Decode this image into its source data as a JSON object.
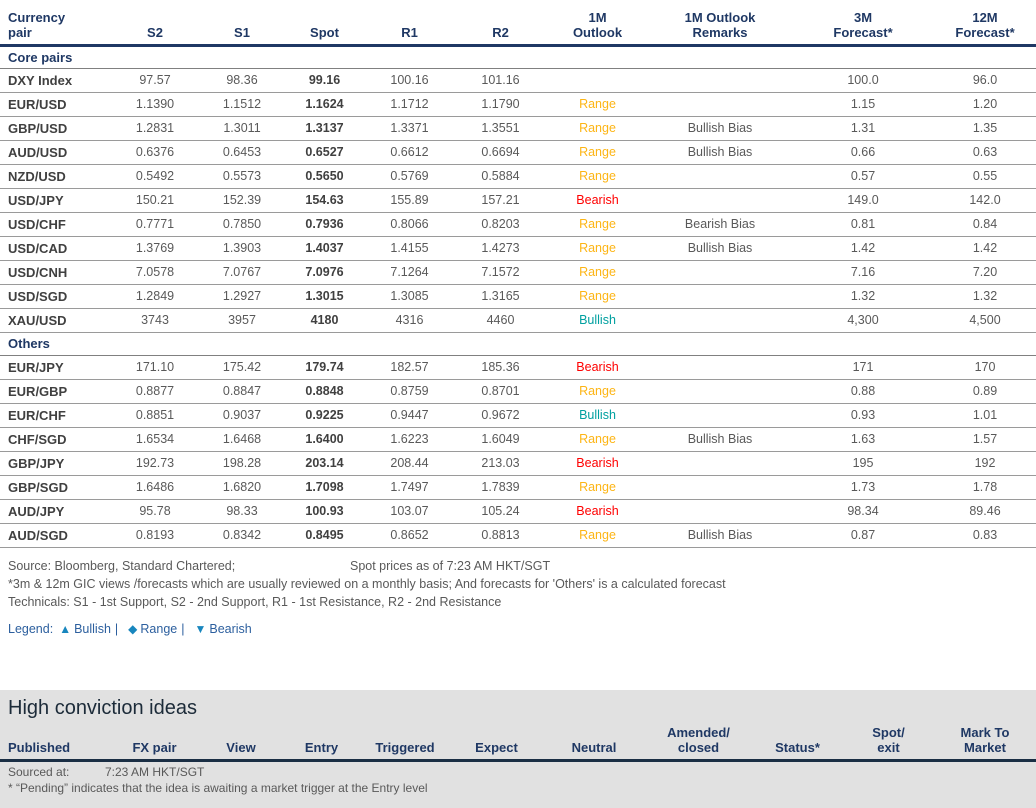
{
  "colors": {
    "range": "#FDB515",
    "bearish": "#FF0000",
    "bullish": "#00A0A0",
    "navy": "#1F3864",
    "section_bg": "#E1E1E1",
    "legend_text": "#2C5F9E",
    "legend_icon": "#1886BE"
  },
  "fx_table": {
    "columns": [
      "Currency\npair",
      "S2",
      "S1",
      "Spot",
      "R1",
      "R2",
      "1M\nOutlook",
      "1M Outlook\nRemarks",
      "3M\nForecast*",
      "12M\nForecast*"
    ],
    "sections": [
      {
        "label": "Core pairs",
        "rows": [
          {
            "pair": "DXY Index",
            "s2": "97.57",
            "s1": "98.36",
            "spot": "99.16",
            "r1": "100.16",
            "r2": "101.16",
            "outlook": "",
            "outlook_type": "",
            "remarks": "",
            "f3m": "100.0",
            "f12m": "96.0"
          },
          {
            "pair": "EUR/USD",
            "s2": "1.1390",
            "s1": "1.1512",
            "spot": "1.1624",
            "r1": "1.1712",
            "r2": "1.1790",
            "outlook": "Range",
            "outlook_type": "range",
            "remarks": "",
            "f3m": "1.15",
            "f12m": "1.20"
          },
          {
            "pair": "GBP/USD",
            "s2": "1.2831",
            "s1": "1.3011",
            "spot": "1.3137",
            "r1": "1.3371",
            "r2": "1.3551",
            "outlook": "Range",
            "outlook_type": "range",
            "remarks": "Bullish Bias",
            "f3m": "1.31",
            "f12m": "1.35"
          },
          {
            "pair": "AUD/USD",
            "s2": "0.6376",
            "s1": "0.6453",
            "spot": "0.6527",
            "r1": "0.6612",
            "r2": "0.6694",
            "outlook": "Range",
            "outlook_type": "range",
            "remarks": "Bullish Bias",
            "f3m": "0.66",
            "f12m": "0.63"
          },
          {
            "pair": "NZD/USD",
            "s2": "0.5492",
            "s1": "0.5573",
            "spot": "0.5650",
            "r1": "0.5769",
            "r2": "0.5884",
            "outlook": "Range",
            "outlook_type": "range",
            "remarks": "",
            "f3m": "0.57",
            "f12m": "0.55"
          },
          {
            "pair": "USD/JPY",
            "s2": "150.21",
            "s1": "152.39",
            "spot": "154.63",
            "r1": "155.89",
            "r2": "157.21",
            "outlook": "Bearish",
            "outlook_type": "bearish",
            "remarks": "",
            "f3m": "149.0",
            "f12m": "142.0"
          },
          {
            "pair": "USD/CHF",
            "s2": "0.7771",
            "s1": "0.7850",
            "spot": "0.7936",
            "r1": "0.8066",
            "r2": "0.8203",
            "outlook": "Range",
            "outlook_type": "range",
            "remarks": "Bearish Bias",
            "f3m": "0.81",
            "f12m": "0.84"
          },
          {
            "pair": "USD/CAD",
            "s2": "1.3769",
            "s1": "1.3903",
            "spot": "1.4037",
            "r1": "1.4155",
            "r2": "1.4273",
            "outlook": "Range",
            "outlook_type": "range",
            "remarks": "Bullish Bias",
            "f3m": "1.42",
            "f12m": "1.42"
          },
          {
            "pair": "USD/CNH",
            "s2": "7.0578",
            "s1": "7.0767",
            "spot": "7.0976",
            "r1": "7.1264",
            "r2": "7.1572",
            "outlook": "Range",
            "outlook_type": "range",
            "remarks": "",
            "f3m": "7.16",
            "f12m": "7.20"
          },
          {
            "pair": "USD/SGD",
            "s2": "1.2849",
            "s1": "1.2927",
            "spot": "1.3015",
            "r1": "1.3085",
            "r2": "1.3165",
            "outlook": "Range",
            "outlook_type": "range",
            "remarks": "",
            "f3m": "1.32",
            "f12m": "1.32"
          },
          {
            "pair": "XAU/USD",
            "s2": "3743",
            "s1": "3957",
            "spot": "4180",
            "r1": "4316",
            "r2": "4460",
            "outlook": "Bullish",
            "outlook_type": "bullish",
            "remarks": "",
            "f3m": "4,300",
            "f12m": "4,500"
          }
        ]
      },
      {
        "label": "Others",
        "rows": [
          {
            "pair": "EUR/JPY",
            "s2": "171.10",
            "s1": "175.42",
            "spot": "179.74",
            "r1": "182.57",
            "r2": "185.36",
            "outlook": "Bearish",
            "outlook_type": "bearish",
            "remarks": "",
            "f3m": "171",
            "f12m": "170"
          },
          {
            "pair": "EUR/GBP",
            "s2": "0.8877",
            "s1": "0.8847",
            "spot": "0.8848",
            "r1": "0.8759",
            "r2": "0.8701",
            "outlook": "Range",
            "outlook_type": "range",
            "remarks": "",
            "f3m": "0.88",
            "f12m": "0.89"
          },
          {
            "pair": "EUR/CHF",
            "s2": "0.8851",
            "s1": "0.9037",
            "spot": "0.9225",
            "r1": "0.9447",
            "r2": "0.9672",
            "outlook": "Bullish",
            "outlook_type": "bullish",
            "remarks": "",
            "f3m": "0.93",
            "f12m": "1.01"
          },
          {
            "pair": "CHF/SGD",
            "s2": "1.6534",
            "s1": "1.6468",
            "spot": "1.6400",
            "r1": "1.6223",
            "r2": "1.6049",
            "outlook": "Range",
            "outlook_type": "range",
            "remarks": "Bullish Bias",
            "f3m": "1.63",
            "f12m": "1.57"
          },
          {
            "pair": "GBP/JPY",
            "s2": "192.73",
            "s1": "198.28",
            "spot": "203.14",
            "r1": "208.44",
            "r2": "213.03",
            "outlook": "Bearish",
            "outlook_type": "bearish",
            "remarks": "",
            "f3m": "195",
            "f12m": "192"
          },
          {
            "pair": "GBP/SGD",
            "s2": "1.6486",
            "s1": "1.6820",
            "spot": "1.7098",
            "r1": "1.7497",
            "r2": "1.7839",
            "outlook": "Range",
            "outlook_type": "range",
            "remarks": "",
            "f3m": "1.73",
            "f12m": "1.78"
          },
          {
            "pair": "AUD/JPY",
            "s2": "95.78",
            "s1": "98.33",
            "spot": "100.93",
            "r1": "103.07",
            "r2": "105.24",
            "outlook": "Bearish",
            "outlook_type": "bearish",
            "remarks": "",
            "f3m": "98.34",
            "f12m": "89.46"
          },
          {
            "pair": "AUD/SGD",
            "s2": "0.8193",
            "s1": "0.8342",
            "spot": "0.8495",
            "r1": "0.8652",
            "r2": "0.8813",
            "outlook": "Range",
            "outlook_type": "range",
            "remarks": "Bullish Bias",
            "f3m": "0.87",
            "f12m": "0.83"
          }
        ]
      }
    ]
  },
  "notes": {
    "source_left": "Source: Bloomberg, Standard Chartered;",
    "source_right": "Spot prices as of 7:23 AM HKT/SGT",
    "forecast_note": "*3m & 12m GIC views /forecasts which are usually reviewed on a monthly basis; And forecasts for 'Others' is a calculated forecast",
    "technicals_note": "Technicals: S1 - 1st Support, S2 - 2nd Support, R1 - 1st Resistance, R2 - 2nd Resistance",
    "legend_label": "Legend:",
    "legend_separator": "|",
    "legend_items": [
      {
        "icon": "▲",
        "icon_name": "bullish-triangle-up-icon",
        "label": "Bullish"
      },
      {
        "icon": "◆",
        "icon_name": "range-diamond-icon",
        "label": "Range"
      },
      {
        "icon": "▼",
        "icon_name": "bearish-triangle-down-icon",
        "label": "Bearish"
      }
    ]
  },
  "high_conviction": {
    "title": "High conviction ideas",
    "columns": [
      "Published",
      "FX pair",
      "View",
      "Entry",
      "Triggered",
      "Expect",
      "Neutral",
      "Amended/\nclosed",
      "Status*",
      "Spot/\nexit",
      "Mark To\nMarket"
    ],
    "sourced_label": "Sourced at:",
    "sourced_value": "7:23 AM HKT/SGT",
    "pending_note": "* “Pending” indicates that the idea is awaiting a market trigger at the Entry level"
  }
}
